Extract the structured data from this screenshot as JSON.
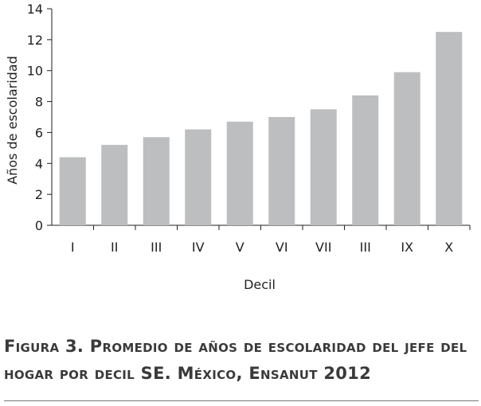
{
  "chart_data": {
    "type": "bar",
    "categories": [
      "I",
      "II",
      "III",
      "IV",
      "V",
      "VI",
      "VII",
      "III",
      "IX",
      "X"
    ],
    "values": [
      4.4,
      5.2,
      5.7,
      6.2,
      6.7,
      7.0,
      7.5,
      8.4,
      9.9,
      12.5
    ],
    "xlabel": "Decil",
    "ylabel": "Años de escolaridad",
    "ylim": [
      0,
      14
    ],
    "yticks": [
      0,
      2,
      4,
      6,
      8,
      10,
      12,
      14
    ],
    "bar_color": "#bcbec0",
    "grid": false,
    "legend": "none"
  },
  "caption": {
    "line1": "Figura 3. Promedio de años de escolaridad del jefe del",
    "line2": "hogar por decil SE. México, Ensanut 2012"
  }
}
